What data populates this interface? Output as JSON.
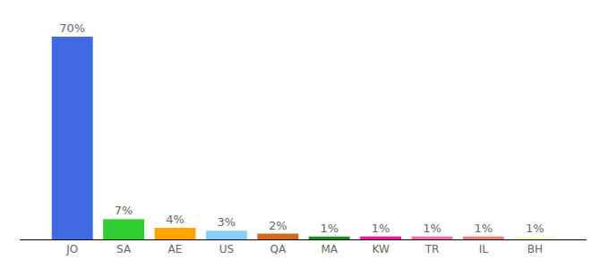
{
  "chart_data": {
    "type": "bar",
    "categories": [
      "JO",
      "SA",
      "AE",
      "US",
      "QA",
      "MA",
      "KW",
      "TR",
      "IL",
      "BH"
    ],
    "values": [
      70,
      7,
      4,
      3,
      2,
      1,
      1,
      1,
      1,
      1
    ],
    "value_labels": [
      "70%",
      "7%",
      "4%",
      "3%",
      "2%",
      "1%",
      "1%",
      "1%",
      "1%",
      "1%"
    ],
    "colors": [
      "#4169e1",
      "#32cd32",
      "#ffa500",
      "#87cefa",
      "#d2691e",
      "#228b22",
      "#ff1493",
      "#ff69b4",
      "#f08080",
      "#fafad2"
    ],
    "ylim": [
      0,
      70
    ],
    "data_labels": true,
    "tick_labels": "x"
  }
}
